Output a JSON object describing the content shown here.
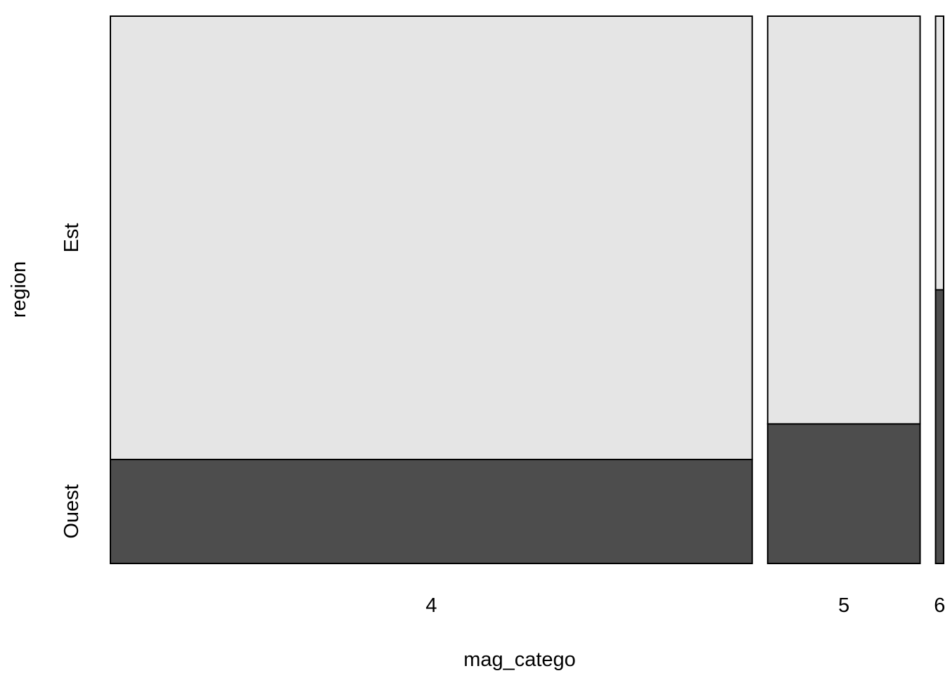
{
  "chart_data": {
    "type": "mosaic",
    "xlabel": "mag_catego",
    "ylabel": "region",
    "categories": [
      "4",
      "5",
      "6"
    ],
    "column_shares": [
      0.8,
      0.19,
      0.01
    ],
    "levels": [
      "Ouest",
      "Est"
    ],
    "series": [
      {
        "name": "Ouest",
        "values": [
          0.19,
          0.255,
          0.5
        ]
      },
      {
        "name": "Est",
        "values": [
          0.81,
          0.745,
          0.5
        ]
      }
    ],
    "colors": {
      "Ouest": "#4d4d4d",
      "Est": "#e5e5e5",
      "border": "#000000"
    },
    "grid": false,
    "legend": "none"
  }
}
